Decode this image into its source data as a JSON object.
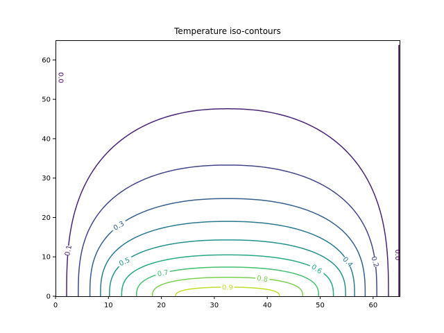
{
  "chart_data": {
    "type": "contour",
    "title": "Temperature iso-contours",
    "xlabel": "",
    "ylabel": "",
    "xlim": [
      0,
      65
    ],
    "ylim": [
      0,
      65
    ],
    "x_ticks": [
      "0",
      "10",
      "20",
      "30",
      "40",
      "50",
      "60"
    ],
    "y_ticks": [
      "0",
      "10",
      "20",
      "30",
      "40",
      "50",
      "60"
    ],
    "colormap": "viridis",
    "center_x": 32.5,
    "levels": [
      {
        "value": 0.0,
        "label": "0.0",
        "color": "#440154"
      },
      {
        "value": 0.1,
        "label": "0.1",
        "color": "#482475",
        "half_width_x": 30.4,
        "peak_y": 47.6
      },
      {
        "value": 0.2,
        "label": "0.2",
        "color": "#414487",
        "half_width_x": 28.2,
        "peak_y": 33.3
      },
      {
        "value": 0.3,
        "label": "0.3",
        "color": "#355f8d",
        "half_width_x": 26.0,
        "peak_y": 24.8
      },
      {
        "value": 0.4,
        "label": "0.4",
        "color": "#2a788e",
        "half_width_x": 24.0,
        "peak_y": 19.0
      },
      {
        "value": 0.5,
        "label": "0.5",
        "color": "#21918c",
        "half_width_x": 22.3,
        "peak_y": 14.3
      },
      {
        "value": 0.6,
        "label": "0.6",
        "color": "#22a884",
        "half_width_x": 20.0,
        "peak_y": 10.5
      },
      {
        "value": 0.7,
        "label": "0.7",
        "color": "#44bf70",
        "half_width_x": 17.2,
        "peak_y": 7.4
      },
      {
        "value": 0.8,
        "label": "0.8",
        "color": "#7ad151",
        "half_width_x": 14.2,
        "peak_y": 4.8
      },
      {
        "value": 0.9,
        "label": "0.9",
        "color": "#bddf26",
        "half_width_x": 9.8,
        "peak_y": 2.3
      }
    ],
    "grid": false,
    "legend": false
  }
}
